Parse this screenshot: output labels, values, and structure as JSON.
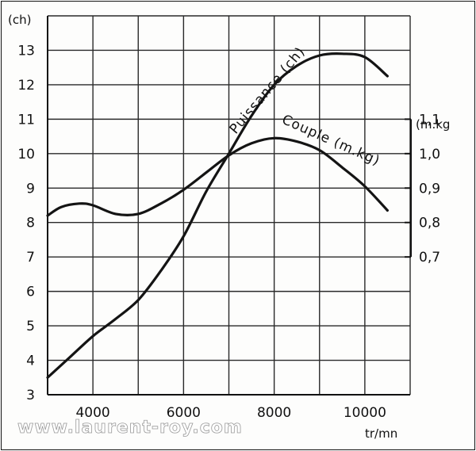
{
  "chart_data": {
    "type": "line",
    "x_unit_label": "tr/mn",
    "y_left_unit_label": "(ch)",
    "y_right_unit_label": "(m.kg",
    "x_ticks": [
      4000,
      6000,
      8000,
      10000
    ],
    "xlim": [
      3000,
      11000
    ],
    "y_left_ticks": [
      3,
      4,
      5,
      6,
      7,
      8,
      9,
      10,
      11,
      12,
      13
    ],
    "y_left_lim": [
      3,
      14
    ],
    "y_right_ticks": [
      "1,1",
      "1,0",
      "0,9",
      "0,8",
      "0,7"
    ],
    "y_right_values": [
      1.1,
      1.0,
      0.9,
      0.8,
      0.7
    ],
    "y_right_mapping": {
      "value_at_left_10": 1.0,
      "value_per_left_unit": 0.1
    },
    "grid": true,
    "series": [
      {
        "name": "Puissance (ch)",
        "axis": "left",
        "x": [
          3000,
          3500,
          4000,
          4500,
          5000,
          5500,
          6000,
          6500,
          7000,
          7500,
          8000,
          8500,
          9000,
          9500,
          10000,
          10500
        ],
        "y": [
          3.5,
          4.1,
          4.7,
          5.2,
          5.75,
          6.6,
          7.6,
          8.9,
          10.0,
          11.1,
          12.0,
          12.55,
          12.85,
          12.9,
          12.8,
          12.25
        ]
      },
      {
        "name": "Couple (m.kg)",
        "axis": "left",
        "x": [
          3000,
          3300,
          3700,
          4000,
          4500,
          5000,
          5500,
          6000,
          6500,
          7000,
          7500,
          8000,
          8500,
          9000,
          9500,
          10000,
          10500
        ],
        "y": [
          8.2,
          8.45,
          8.55,
          8.5,
          8.25,
          8.25,
          8.55,
          8.95,
          9.45,
          9.95,
          10.3,
          10.45,
          10.35,
          10.1,
          9.6,
          9.05,
          8.35
        ]
      }
    ]
  },
  "labels": {
    "puissance": "Puissance (ch)",
    "couple": "Couple (m.kg)"
  },
  "watermark": "www.laurent-roy.com"
}
